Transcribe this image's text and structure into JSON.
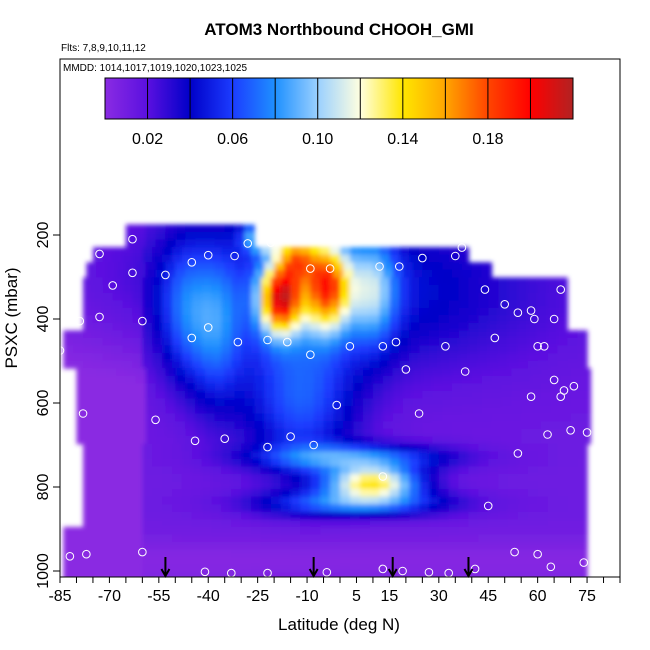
{
  "chart_data": {
    "type": "heatmap",
    "title": "ATOM3 Northbound CHOOH_GMI",
    "subtitle_flights": "Flts: 7,8,9,10,11,12",
    "subtitle_dates": "MMDD: 1014,1017,1019,1020,1023,1025",
    "xlabel": "Latitude (deg N)",
    "ylabel": "PSXC (mbar)",
    "x_ticks": [
      -85,
      -70,
      -55,
      -40,
      -25,
      -10,
      5,
      15,
      30,
      45,
      60,
      75
    ],
    "y_ticks": [
      200,
      400,
      600,
      800,
      1000
    ],
    "xlim": [
      -85,
      85
    ],
    "ylim": [
      1010,
      130
    ],
    "colorbar": {
      "min": 0.0,
      "max": 0.22,
      "tick_labels": [
        "0.02",
        "0.06",
        "0.10",
        "0.14",
        "0.18"
      ],
      "tick_values": [
        0.02,
        0.06,
        0.1,
        0.14,
        0.18
      ],
      "colors": [
        "#8a2be2",
        "#5a10e0",
        "#0000c8",
        "#1c3cff",
        "#1e90ff",
        "#9ad0ff",
        "#ffffe0",
        "#ffe600",
        "#ffa500",
        "#ff4500",
        "#ff0000",
        "#b22222"
      ]
    },
    "flight_marker_latitudes": [
      -53,
      -8,
      16,
      39
    ],
    "observations": [
      {
        "lat": -63,
        "p": 210
      },
      {
        "lat": -73,
        "p": 245
      },
      {
        "lat": -63,
        "p": 290
      },
      {
        "lat": -53,
        "p": 295
      },
      {
        "lat": -45,
        "p": 265
      },
      {
        "lat": -40,
        "p": 248
      },
      {
        "lat": -32,
        "p": 250
      },
      {
        "lat": -28,
        "p": 220
      },
      {
        "lat": -21,
        "p": 218
      },
      {
        "lat": -15,
        "p": 205
      },
      {
        "lat": -69,
        "p": 320
      },
      {
        "lat": -73,
        "p": 395
      },
      {
        "lat": -79,
        "p": 405
      },
      {
        "lat": -60,
        "p": 405
      },
      {
        "lat": -45,
        "p": 445
      },
      {
        "lat": -40,
        "p": 420
      },
      {
        "lat": -31,
        "p": 455
      },
      {
        "lat": -22,
        "p": 450
      },
      {
        "lat": -16,
        "p": 455
      },
      {
        "lat": -9,
        "p": 280
      },
      {
        "lat": -3,
        "p": 280
      },
      {
        "lat": 12,
        "p": 275
      },
      {
        "lat": 18,
        "p": 275
      },
      {
        "lat": 25,
        "p": 255
      },
      {
        "lat": 35,
        "p": 250
      },
      {
        "lat": 37,
        "p": 230
      },
      {
        "lat": 44,
        "p": 330
      },
      {
        "lat": 50,
        "p": 365
      },
      {
        "lat": 54,
        "p": 385
      },
      {
        "lat": 58,
        "p": 380
      },
      {
        "lat": 59,
        "p": 400
      },
      {
        "lat": 65,
        "p": 400
      },
      {
        "lat": 67,
        "p": 330
      },
      {
        "lat": 73,
        "p": 405
      },
      {
        "lat": 3,
        "p": 465
      },
      {
        "lat": 13,
        "p": 465
      },
      {
        "lat": 17,
        "p": 455
      },
      {
        "lat": 20,
        "p": 520
      },
      {
        "lat": 32,
        "p": 465
      },
      {
        "lat": 38,
        "p": 525
      },
      {
        "lat": 47,
        "p": 445
      },
      {
        "lat": 60,
        "p": 465
      },
      {
        "lat": 62,
        "p": 465
      },
      {
        "lat": 65,
        "p": 545
      },
      {
        "lat": 68,
        "p": 570
      },
      {
        "lat": 67,
        "p": 585
      },
      {
        "lat": 58,
        "p": 585
      },
      {
        "lat": 71,
        "p": 560
      },
      {
        "lat": -9,
        "p": 485
      },
      {
        "lat": -1,
        "p": 605
      },
      {
        "lat": 24,
        "p": 625
      },
      {
        "lat": -78,
        "p": 625
      },
      {
        "lat": -56,
        "p": 640
      },
      {
        "lat": -44,
        "p": 690
      },
      {
        "lat": -35,
        "p": 685
      },
      {
        "lat": -22,
        "p": 705
      },
      {
        "lat": -15,
        "p": 680
      },
      {
        "lat": -8,
        "p": 700
      },
      {
        "lat": 70,
        "p": 665
      },
      {
        "lat": 63,
        "p": 675
      },
      {
        "lat": 75,
        "p": 670
      },
      {
        "lat": 54,
        "p": 720
      },
      {
        "lat": 13,
        "p": 775
      },
      {
        "lat": 45,
        "p": 845
      },
      {
        "lat": 53,
        "p": 955
      },
      {
        "lat": 60,
        "p": 960
      },
      {
        "lat": 64,
        "p": 990
      },
      {
        "lat": 74,
        "p": 980
      },
      {
        "lat": -82,
        "p": 965
      },
      {
        "lat": -77,
        "p": 960
      },
      {
        "lat": -60,
        "p": 955
      },
      {
        "lat": -41,
        "p": 1002
      },
      {
        "lat": -33,
        "p": 1005
      },
      {
        "lat": -22,
        "p": 1005
      },
      {
        "lat": -4,
        "p": 1003
      },
      {
        "lat": 13,
        "p": 995
      },
      {
        "lat": 19,
        "p": 1000
      },
      {
        "lat": 27,
        "p": 1003
      },
      {
        "lat": 33,
        "p": 1005
      },
      {
        "lat": 41,
        "p": 995
      },
      {
        "lat": -85,
        "p": 475
      }
    ]
  }
}
